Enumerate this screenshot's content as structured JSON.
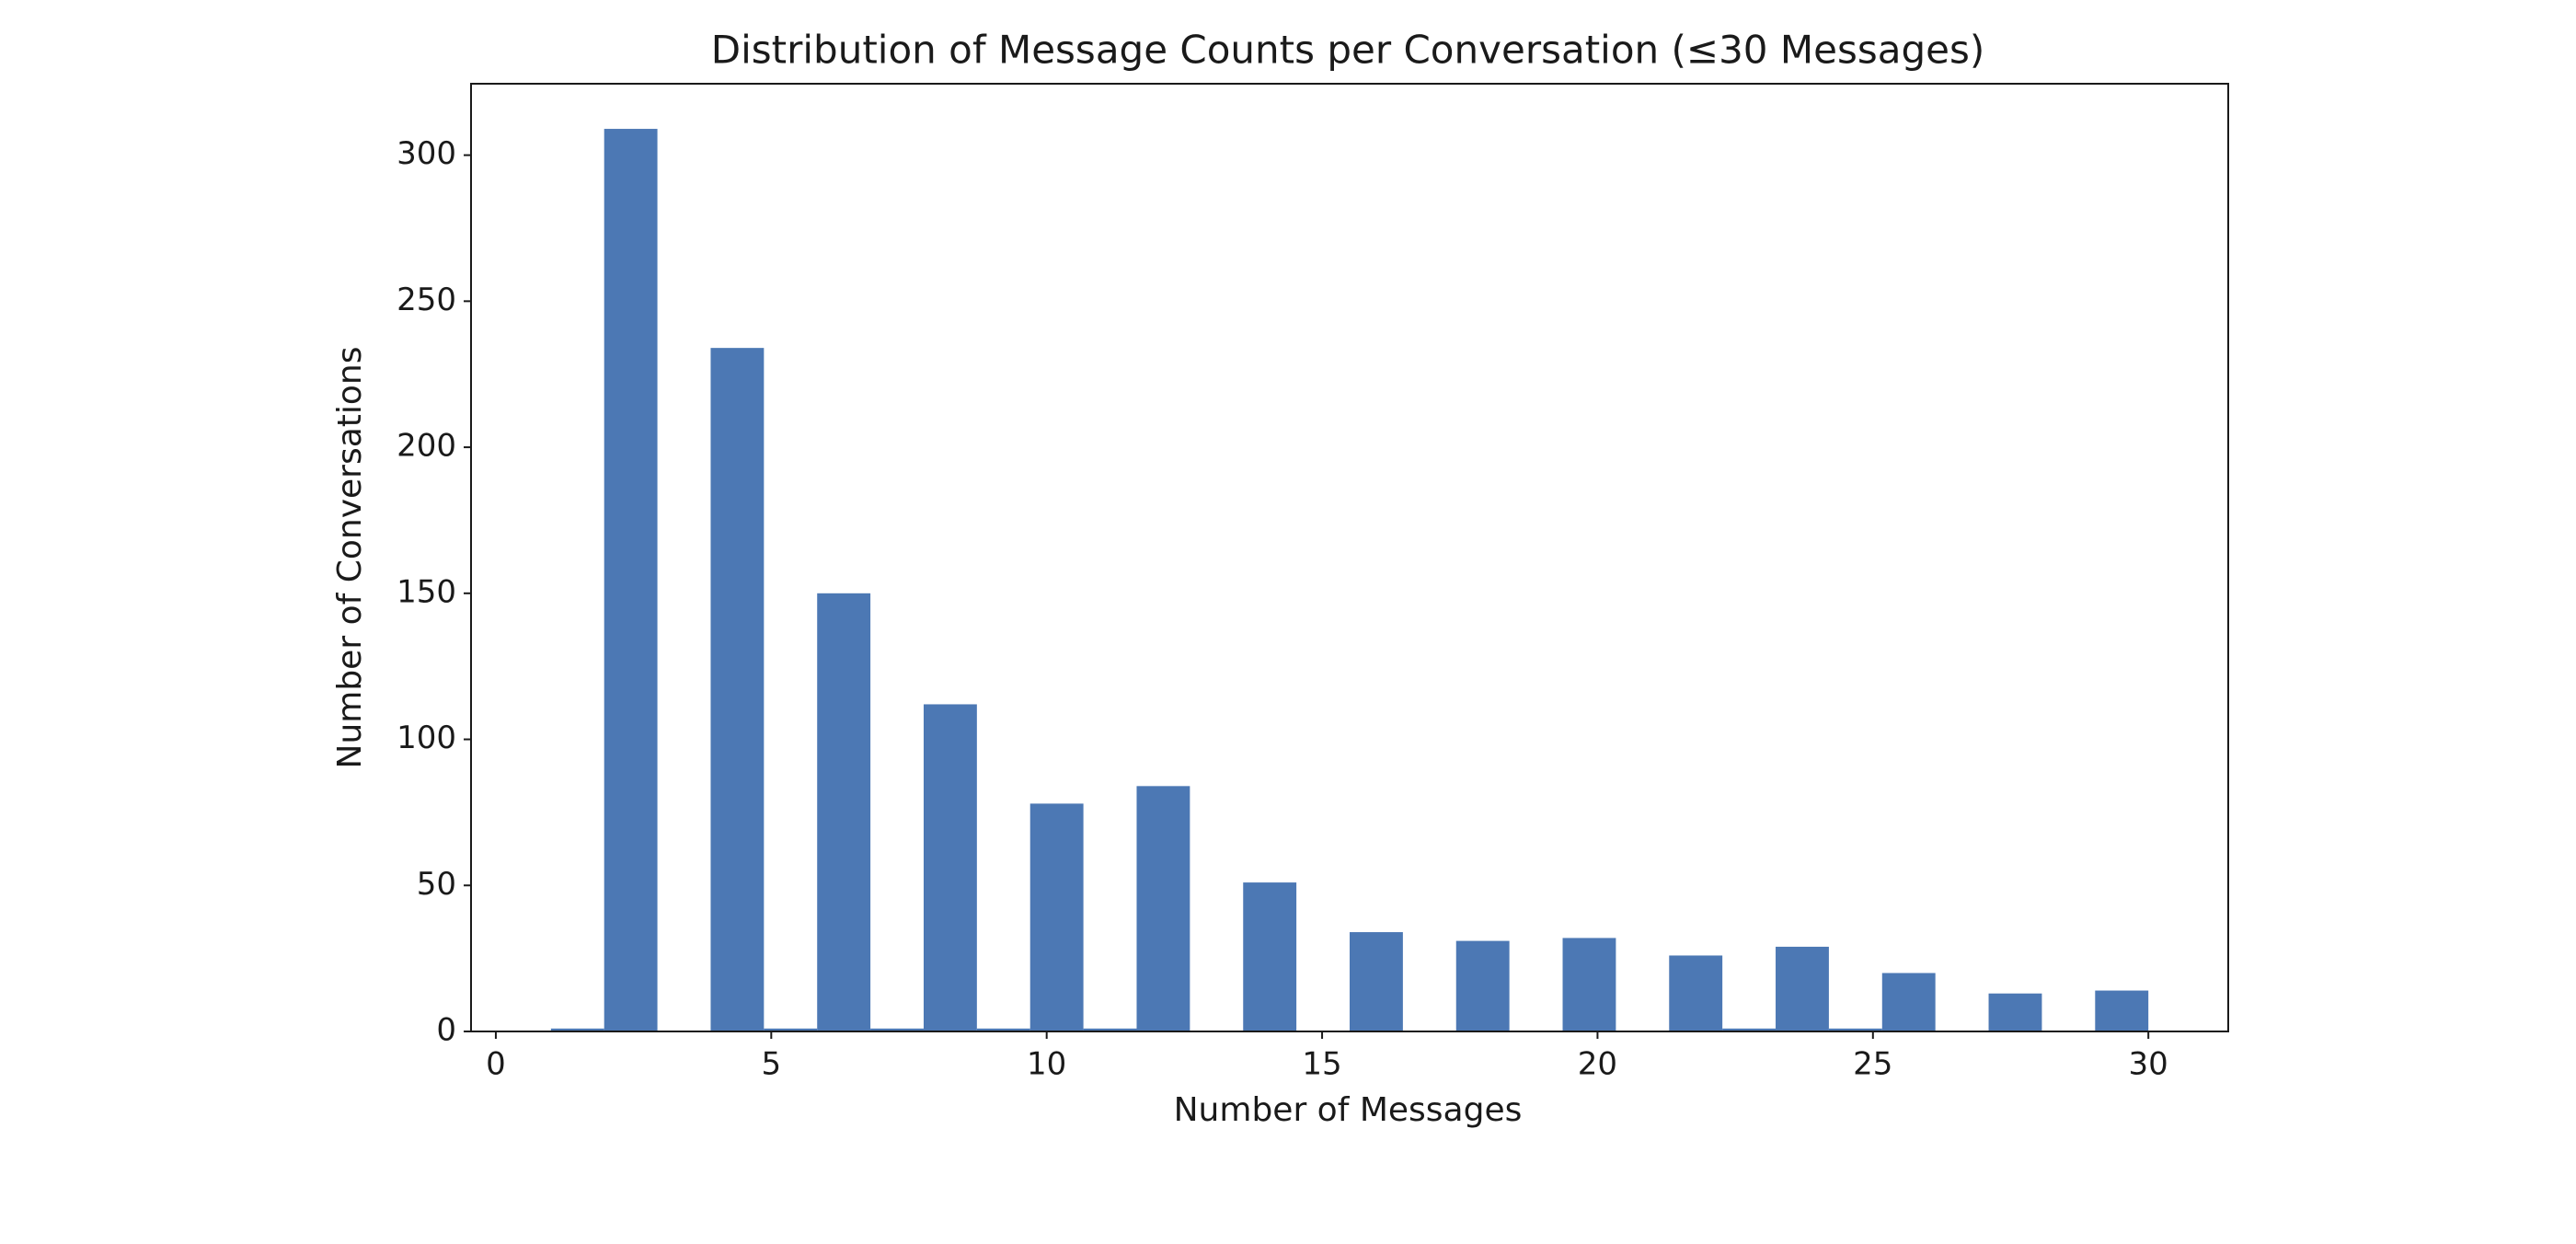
{
  "chart_data": {
    "type": "histogram",
    "title": "Distribution of Message Counts per Conversation (≤30 Messages)",
    "x_label": "Number of Messages",
    "y_label": "Number of Conversations",
    "bins": [
      1,
      1.9667,
      2.9333,
      3.9,
      4.8667,
      5.8333,
      6.8,
      7.7667,
      8.7333,
      9.7,
      10.6667,
      11.6333,
      12.6,
      13.5667,
      14.5333,
      15.5,
      16.4667,
      17.4333,
      18.4,
      19.3667,
      20.3333,
      21.3,
      22.2667,
      23.2333,
      24.2,
      25.1667,
      26.1333,
      27.1,
      28.0667,
      29.0333,
      30
    ],
    "values": [
      1,
      309,
      0,
      234,
      1,
      150,
      1,
      112,
      1,
      78,
      1,
      84,
      0,
      51,
      0,
      34,
      0,
      31,
      0,
      32,
      0,
      26,
      1,
      29,
      1,
      20,
      0,
      13,
      0,
      14
    ],
    "color": "#4c78b4",
    "xlim": [
      -0.45,
      31.45
    ],
    "xticks": [
      0,
      5,
      10,
      15,
      20,
      25,
      30
    ],
    "ylim": [
      0,
      324.45
    ],
    "yticks": [
      0,
      50,
      100,
      150,
      200,
      250,
      300
    ]
  }
}
